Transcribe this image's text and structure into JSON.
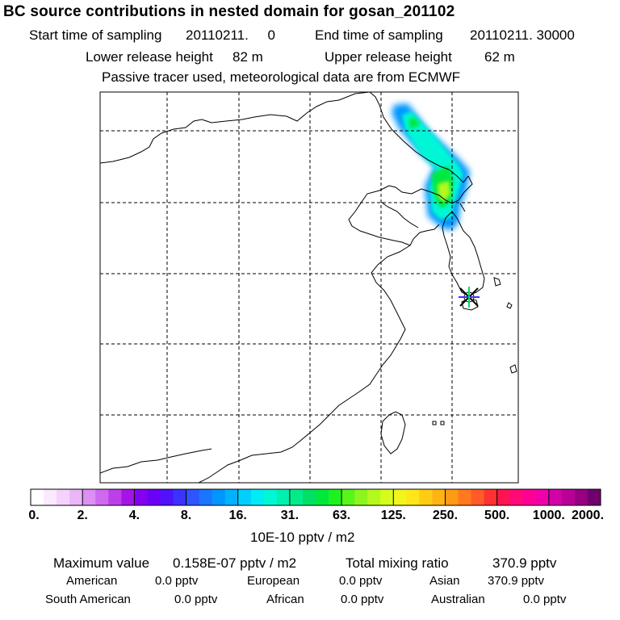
{
  "title": "BC  source contributions in nested domain for gosan_201102",
  "header": {
    "start_label": "Start time of sampling",
    "start_value": "20110211.     0",
    "end_label": "End time of sampling",
    "end_value": "20110211. 30000",
    "lower_label": "Lower release height",
    "lower_value": "82 m",
    "upper_label": "Upper release height",
    "upper_value": "62 m",
    "note": "Passive tracer used, meteorological data are from ECMWF"
  },
  "chart_data": {
    "type": "heatmap",
    "title": "BC  source contributions in nested domain for gosan_201102",
    "colorbar": {
      "ticks": [
        "0.",
        "2.",
        "4.",
        "8.",
        "16.",
        "31.",
        "63.",
        "125.",
        "250.",
        "500.",
        "1000.",
        "2000."
      ],
      "units": "10E-10 pptv / m2",
      "colors": [
        "#ffffff",
        "#fbe9fd",
        "#f4d2fb",
        "#eab6f8",
        "#dd8ff4",
        "#cf69f0",
        "#bc3fea",
        "#a514e6",
        "#8500f0",
        "#6a00f6",
        "#4f12fa",
        "#3c33ff",
        "#2e55ff",
        "#1b76ff",
        "#0096ff",
        "#00b2ff",
        "#00cfff",
        "#00ebf5",
        "#00f7d6",
        "#00f0b0",
        "#00eb8a",
        "#00e064",
        "#00e83c",
        "#1ef21e",
        "#57f51a",
        "#8cf51e",
        "#b4f91e",
        "#d6fc1e",
        "#f0f51a",
        "#ffe61a",
        "#ffcc14",
        "#ffb414",
        "#ff9a14",
        "#ff7a1e",
        "#ff5a28",
        "#ff3232",
        "#ff1450",
        "#ff0a78",
        "#ff0096",
        "#f000aa",
        "#d400aa",
        "#b80096",
        "#960082",
        "#70006e"
      ]
    },
    "plume": [
      {
        "id": 1,
        "level": 3
      },
      {
        "id": 2,
        "level": 4
      },
      {
        "id": 3,
        "level": 5
      },
      {
        "id": 4,
        "level": 6
      }
    ],
    "receptor": "Gosan"
  },
  "footer": {
    "max_label": "Maximum value",
    "max_value": "0.158E-07 pptv / m2",
    "total_label": "Total mixing ratio",
    "total_value": "370.9 pptv",
    "regions": [
      {
        "name": "American",
        "value": "0.0 pptv"
      },
      {
        "name": "European",
        "value": "0.0 pptv"
      },
      {
        "name": "Asian",
        "value": "370.9 pptv"
      },
      {
        "name": "South American",
        "value": "0.0 pptv"
      },
      {
        "name": "African",
        "value": "0.0 pptv"
      },
      {
        "name": "Australian",
        "value": "0.0 pptv"
      }
    ]
  }
}
